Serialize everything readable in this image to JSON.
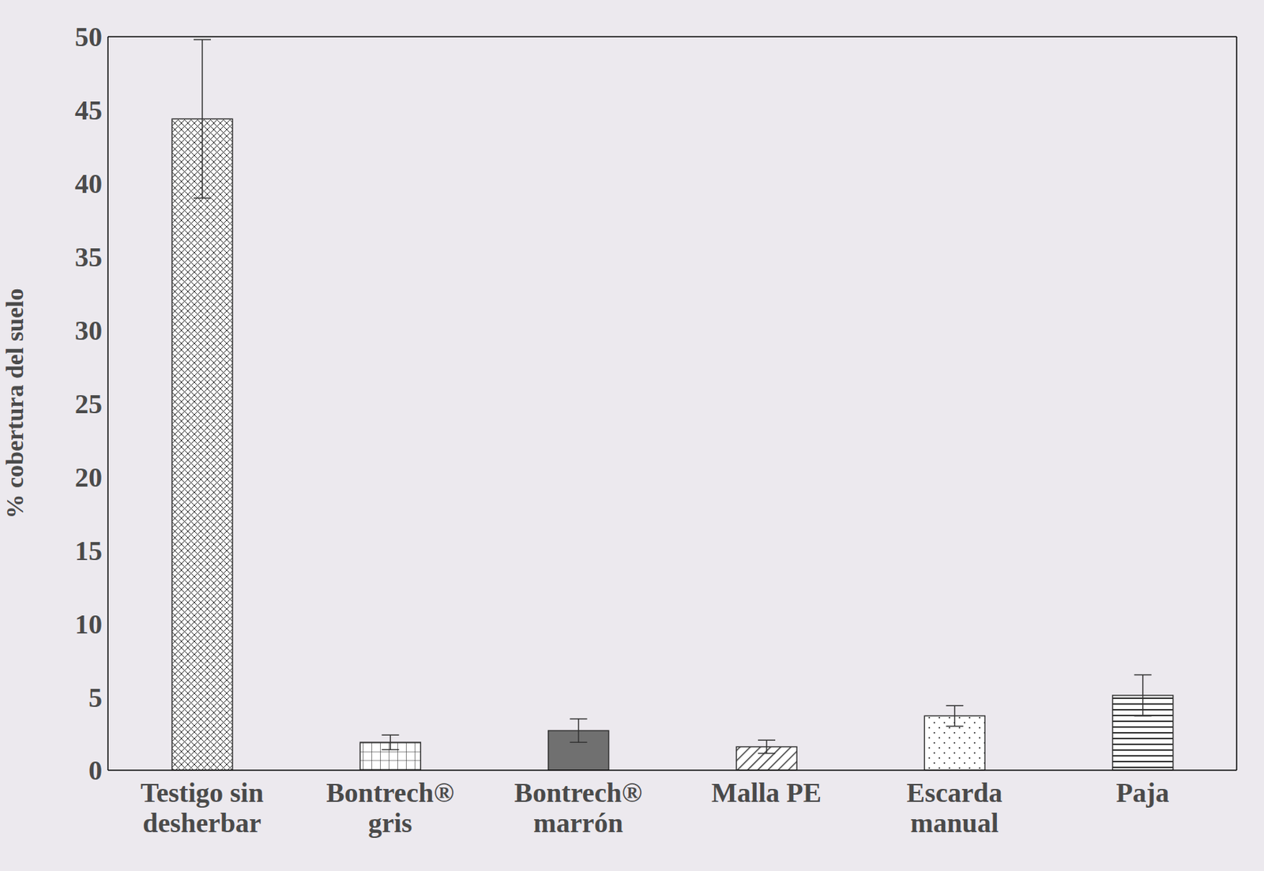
{
  "chart_data": {
    "type": "bar",
    "y_label": "% cobertura del suelo",
    "categories": [
      "Testigo sin desherbar",
      "Bontrech® gris",
      "Bontrech® marrón",
      "Malla PE",
      "Escarda manual",
      "Paja"
    ],
    "values": [
      44.4,
      1.9,
      2.7,
      1.6,
      3.7,
      5.1
    ],
    "errors": [
      5.4,
      0.5,
      0.8,
      0.45,
      0.7,
      1.4
    ],
    "colors": [
      "#ffffff",
      "#ffffff",
      "#707070",
      "#ffffff",
      "#ffffff",
      "#ffffff"
    ],
    "ylim": [
      0,
      50
    ],
    "yticks": [
      0,
      5,
      10,
      15,
      20,
      25,
      30,
      35,
      40,
      45,
      50
    ],
    "grid": false,
    "data_labels": false
  }
}
